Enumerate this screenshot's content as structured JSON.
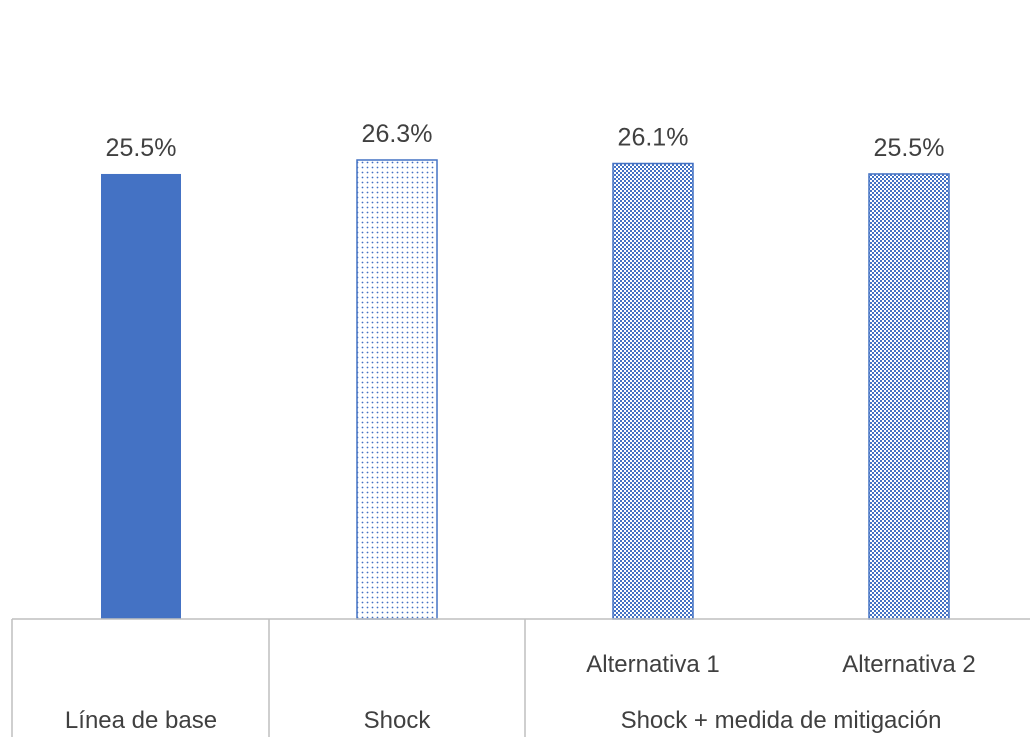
{
  "chart_data": {
    "type": "bar",
    "title": "",
    "xlabel": "",
    "ylabel": "",
    "ylim": [
      0,
      26.3
    ],
    "grid": false,
    "legend": "none",
    "value_format": "percent",
    "categories": [
      "Línea de base",
      "Shock",
      "Alternativa 1",
      "Alternativa 2"
    ],
    "values": [
      25.5,
      26.3,
      26.1,
      25.5
    ],
    "value_labels": [
      "25.5%",
      "26.3%",
      "26.1%",
      "25.5%"
    ],
    "category_groups": [
      {
        "label": "Línea de base",
        "members": [
          "Línea de base"
        ]
      },
      {
        "label": "Shock",
        "members": [
          "Shock"
        ]
      },
      {
        "label": "Shock + medida de mitigación",
        "members": [
          "Alternativa 1",
          "Alternativa 2"
        ]
      }
    ],
    "bar_styles": [
      "solid",
      "light-dots",
      "dense-dots",
      "dense-dots"
    ],
    "colors": {
      "bar": "#4472C4",
      "axis": "#BFBFBF",
      "text": "#404040"
    }
  }
}
